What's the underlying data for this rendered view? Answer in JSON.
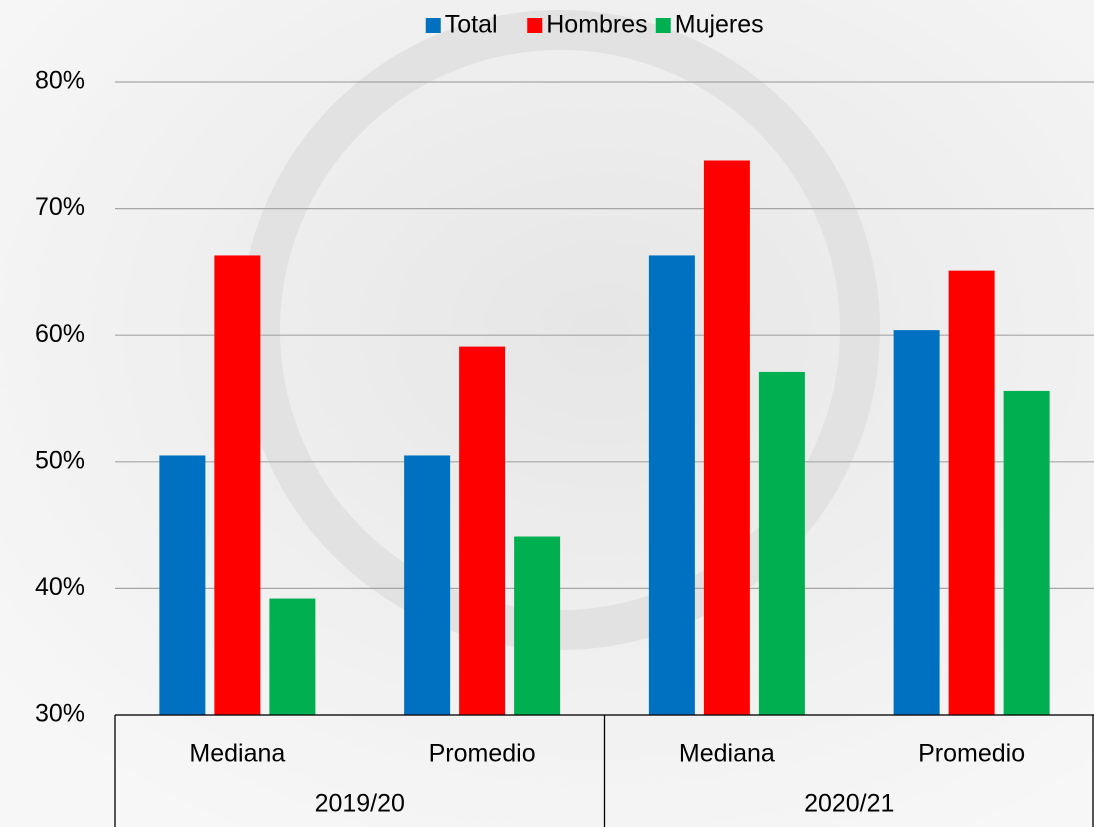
{
  "chart_data": {
    "type": "bar",
    "categories": [
      "Mediana",
      "Promedio",
      "Mediana",
      "Promedio"
    ],
    "groups": [
      "2019/20",
      "2020/21"
    ],
    "series": [
      {
        "name": "Total",
        "color": "#0070c0",
        "values": [
          50.5,
          50.5,
          66.3,
          60.4
        ]
      },
      {
        "name": "Hombres",
        "color": "#ff0000",
        "values": [
          66.3,
          59.1,
          73.8,
          65.1
        ]
      },
      {
        "name": "Mujeres",
        "color": "#00b050",
        "values": [
          39.2,
          44.1,
          57.1,
          55.6
        ]
      }
    ],
    "ylim": [
      30,
      80
    ],
    "yticks": [
      {
        "value": 30,
        "label": "30%"
      },
      {
        "value": 40,
        "label": "40%"
      },
      {
        "value": 50,
        "label": "50%"
      },
      {
        "value": 60,
        "label": "60%"
      },
      {
        "value": 70,
        "label": "70%"
      },
      {
        "value": 80,
        "label": "80%"
      }
    ],
    "grid": true,
    "legend": "top"
  }
}
